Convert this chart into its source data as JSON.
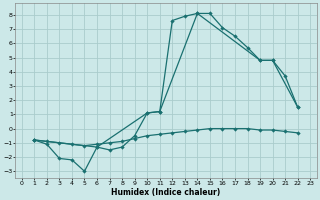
{
  "xlabel": "Humidex (Indice chaleur)",
  "bg_color": "#cce8e8",
  "grid_color": "#aacccc",
  "line_color": "#1a7070",
  "xlim": [
    -0.5,
    23.5
  ],
  "ylim": [
    -3.5,
    8.8
  ],
  "xticks": [
    0,
    1,
    2,
    3,
    4,
    5,
    6,
    7,
    8,
    9,
    10,
    11,
    12,
    13,
    14,
    15,
    16,
    17,
    18,
    19,
    20,
    21,
    22,
    23
  ],
  "yticks": [
    -3,
    -2,
    -1,
    0,
    1,
    2,
    3,
    4,
    5,
    6,
    7,
    8
  ],
  "line1_x": [
    1,
    2,
    3,
    4,
    5,
    6,
    7,
    8,
    9,
    10,
    11,
    12,
    13,
    14,
    15,
    16,
    17,
    18,
    19,
    20,
    21,
    22
  ],
  "line1_y": [
    -0.8,
    -1.1,
    -2.1,
    -2.2,
    -3.0,
    -1.3,
    -1.5,
    -1.3,
    -0.5,
    1.1,
    1.2,
    7.6,
    7.9,
    8.1,
    8.1,
    7.1,
    6.5,
    5.7,
    4.8,
    4.8,
    3.7,
    1.5
  ],
  "line2_x": [
    1,
    6,
    10,
    11,
    14,
    19,
    20,
    22
  ],
  "line2_y": [
    -0.8,
    -1.3,
    1.1,
    1.2,
    8.1,
    4.8,
    4.8,
    1.5
  ],
  "line3_x": [
    1,
    2,
    3,
    4,
    5,
    6,
    7,
    8,
    9,
    10,
    11,
    12,
    13,
    14,
    15,
    16,
    17,
    18,
    19,
    20,
    21,
    22
  ],
  "line3_y": [
    -0.8,
    -0.9,
    -1.0,
    -1.1,
    -1.2,
    -1.1,
    -1.0,
    -0.9,
    -0.7,
    -0.5,
    -0.4,
    -0.3,
    -0.2,
    -0.1,
    0.0,
    0.0,
    0.0,
    0.0,
    -0.1,
    -0.1,
    -0.2,
    -0.3
  ]
}
